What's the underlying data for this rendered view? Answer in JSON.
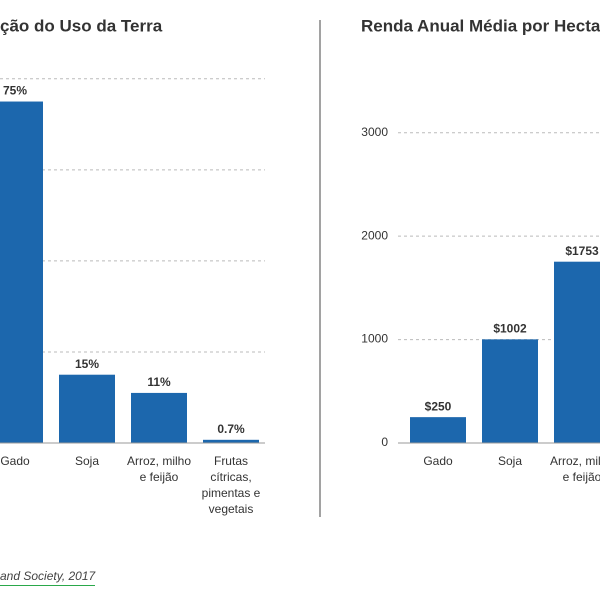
{
  "chart_data": [
    {
      "type": "bar",
      "title": "ção do Uso da Terra",
      "categories": [
        "Gado",
        "Soja",
        "Arroz, milho e feijão",
        "Frutas cítricas, pimentas e vegetais"
      ],
      "values": [
        75,
        15,
        11,
        0.7
      ],
      "value_labels": [
        "75%",
        "15%",
        "11%",
        "0.7%"
      ],
      "color": "#1c67ad",
      "ylim": [
        0,
        85
      ],
      "yticks": [
        20,
        40,
        60,
        80
      ],
      "grid": true
    },
    {
      "type": "bar",
      "title": "Renda Anual Média por Hecta",
      "categories": [
        "Gado",
        "Soja",
        "Arroz, milho e feijão"
      ],
      "values": [
        250,
        1002,
        1753
      ],
      "value_labels": [
        "$250",
        "$1002",
        "$1753"
      ],
      "color": "#1c67ad",
      "ylim": [
        0,
        3500
      ],
      "yticks": [
        0,
        1000,
        2000,
        3000
      ],
      "grid": true
    }
  ],
  "source": "and Society, 2017"
}
